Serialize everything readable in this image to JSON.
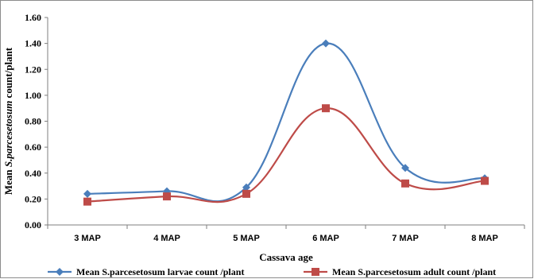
{
  "chart_data": {
    "type": "line",
    "title": "",
    "xlabel": "Cassava age",
    "ylabel": {
      "prefix": "Mean ",
      "italic": "S.parcesetosum",
      "suffix": " count/plant"
    },
    "categories": [
      "3 MAP",
      "4 MAP",
      "5 MAP",
      "6 MAP",
      "7 MAP",
      "8 MAP"
    ],
    "ylim": [
      0,
      1.6
    ],
    "yticks": [
      "0.00",
      "0.20",
      "0.40",
      "0.60",
      "0.80",
      "1.00",
      "1.20",
      "1.40",
      "1.60"
    ],
    "grid": false,
    "legend_position": "bottom",
    "series": [
      {
        "name": "Mean S.parcesetosum larvae count /plant",
        "color": "#4a7ebb",
        "marker": "diamond",
        "values": [
          0.24,
          0.26,
          0.29,
          1.4,
          0.44,
          0.36
        ]
      },
      {
        "name": "Mean S.parcesetosum adult count /plant",
        "color": "#be4b48",
        "marker": "square",
        "values": [
          0.18,
          0.22,
          0.24,
          0.9,
          0.32,
          0.34
        ]
      }
    ]
  }
}
